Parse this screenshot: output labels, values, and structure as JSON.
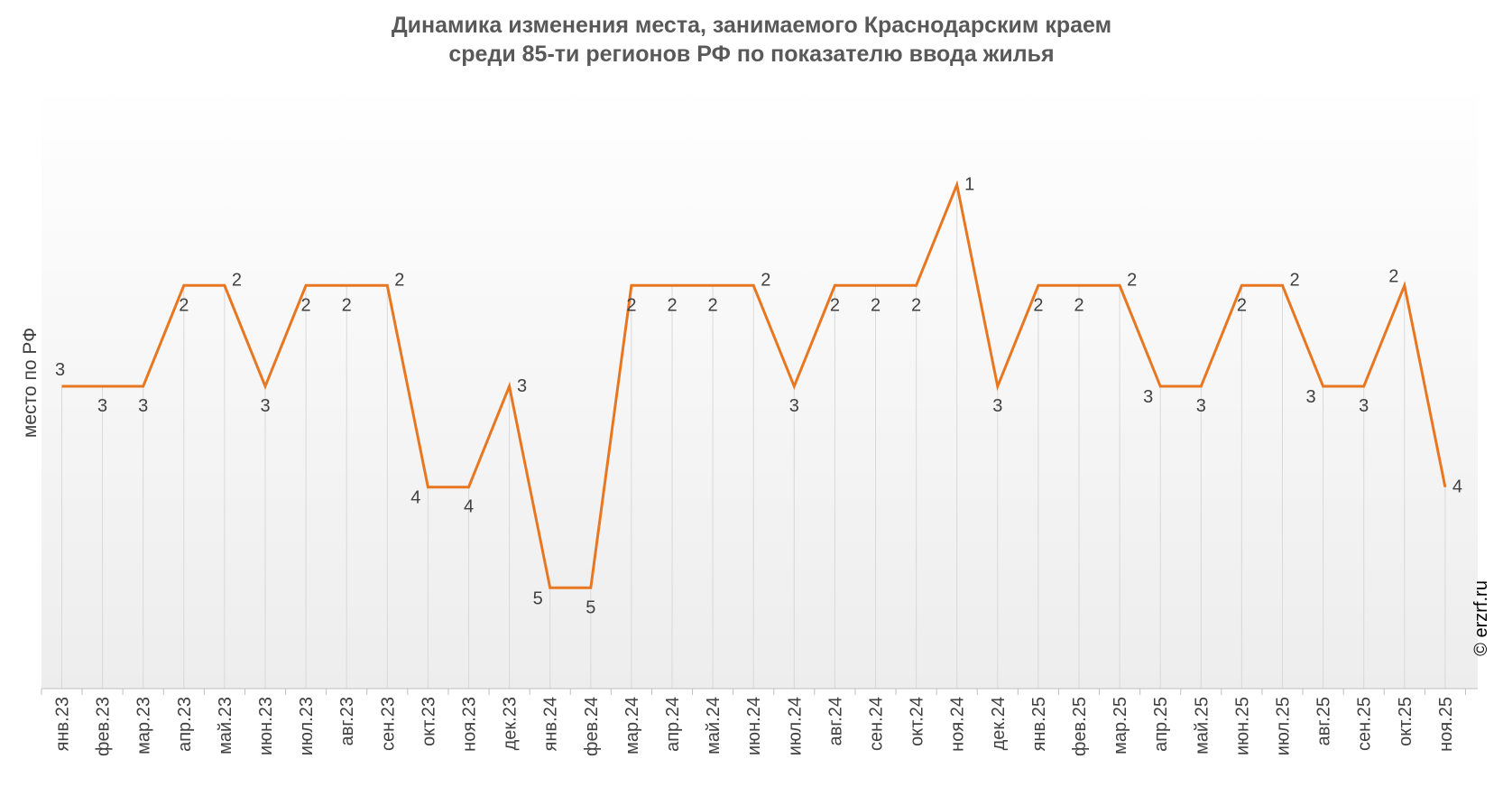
{
  "chart_data": {
    "type": "line",
    "title_line1": "Динамика изменения места, занимаемого Краснодарским краем",
    "title_line2": "среди 85-ти регионов РФ по показателю ввода жилья",
    "ylabel": "место по РФ",
    "xlabel": "",
    "credit": "© erzrf.ru",
    "y_inverted": true,
    "ylim": [
      6,
      0
    ],
    "grid": "vertical",
    "line_color": "#E87722",
    "categories": [
      "янв.23",
      "фев.23",
      "мар.23",
      "апр.23",
      "май.23",
      "июн.23",
      "июл.23",
      "авг.23",
      "сен.23",
      "окт.23",
      "ноя.23",
      "дек.23",
      "янв.24",
      "фев.24",
      "мар.24",
      "апр.24",
      "май.24",
      "июн.24",
      "июл.24",
      "авг.24",
      "сен.24",
      "окт.24",
      "ноя.24",
      "дек.24",
      "янв.25",
      "фев.25",
      "мар.25",
      "апр.25",
      "май.25",
      "июн.25",
      "июл.25",
      "авг.25",
      "сен.25",
      "окт.25",
      "ноя.25"
    ],
    "values": [
      3,
      3,
      3,
      2,
      2,
      3,
      2,
      2,
      2,
      4,
      4,
      3,
      5,
      5,
      2,
      2,
      2,
      2,
      3,
      2,
      2,
      2,
      1,
      3,
      2,
      2,
      2,
      3,
      3,
      2,
      2,
      3,
      3,
      2,
      4
    ]
  }
}
